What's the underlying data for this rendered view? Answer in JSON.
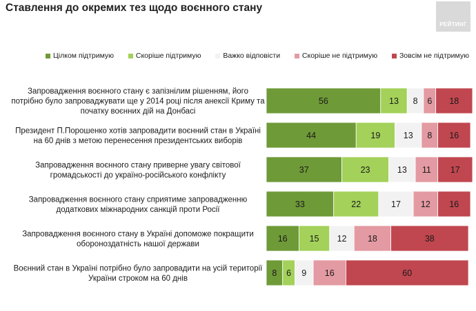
{
  "title": "Ставлення до окремих тез щодо воєнного стану",
  "logo_text": "РЕЙТИНГ",
  "chart_data": {
    "type": "bar",
    "orientation": "horizontal",
    "stacked": true,
    "title": "Ставлення до окремих тез щодо воєнного стану",
    "categories": [
      "Запровадження воєнного стану є запізнілим рішенням, його потрібно було запроваджувати ще у 2014 році після анексії Криму та початку воєнних дій на Донбасі",
      "Президент П.Порошенко хотів запровадити воєнний стан в Україні на 60 днів з метою перенесення президентських виборів",
      "Запровадження воєнного стану приверне увагу світової громадськості до україно-російського конфлікту",
      "Запровадження воєнного стану сприятиме запровадженню додаткових міжнародних санкцій проти Росії",
      "Запровадження воєнного стану в Україні допоможе покращити обороноздатність нашої держави",
      "Воєнний стан в Україні потрібно було запровадити на усій території України строком на 60 днів"
    ],
    "category_lines": [
      [
        "Запровадження воєнного стану є запізнілим рішенням, його",
        "потрібно було запроваджувати ще у 2014 році після анексії Криму та",
        "початку воєнних дій на Донбасі"
      ],
      [
        "Президент П.Порошенко хотів запровадити воєнний стан в Україні",
        "на 60 днів з метою перенесення президентських виборів"
      ],
      [
        "Запровадження воєнного стану приверне увагу світової",
        "громадськості до україно-російського конфлікту"
      ],
      [
        "Запровадження воєнного стану сприятиме запровадженню",
        "додаткових міжнародних санкцій проти Росії"
      ],
      [
        "Запровадження воєнного стану в Україні допоможе покращити",
        "обороноздатність нашої держави"
      ],
      [
        "Воєнний стан в Україні потрібно було запровадити на усій території",
        "України строком на 60 днів"
      ]
    ],
    "series": [
      {
        "name": "Цілком підтримую",
        "color": "#6f9a38",
        "values": [
          56,
          44,
          37,
          33,
          16,
          8
        ]
      },
      {
        "name": "Скоріше підтримую",
        "color": "#a3d15a",
        "values": [
          13,
          19,
          23,
          22,
          15,
          6
        ]
      },
      {
        "name": "Важко відповісти",
        "color": "#f2f2f2",
        "values": [
          8,
          13,
          13,
          17,
          12,
          9
        ]
      },
      {
        "name": "Скоріше  не підтримую",
        "color": "#e39aa2",
        "values": [
          6,
          8,
          11,
          12,
          18,
          16
        ]
      },
      {
        "name": "Зовсім не підтримую",
        "color": "#c0474f",
        "values": [
          18,
          16,
          17,
          16,
          38,
          60
        ]
      }
    ],
    "xlim": [
      0,
      100
    ],
    "legend_position": "top",
    "grid": false
  }
}
